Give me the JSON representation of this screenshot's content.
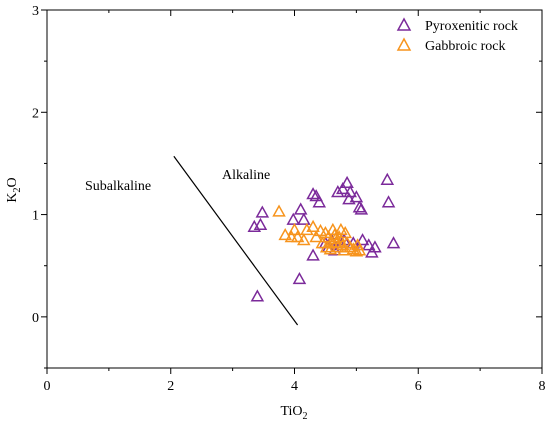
{
  "chart_data": {
    "type": "scatter",
    "title": "",
    "xlabel": "TiO",
    "xlabel_sub": "2",
    "ylabel": "K",
    "ylabel_sub": "2",
    "ylabel_tail": "O",
    "xlim": [
      0,
      8
    ],
    "ylim": [
      -0.5,
      3
    ],
    "xticks": [
      "0",
      "2",
      "4",
      "6",
      "8"
    ],
    "yticks": [
      "0",
      "1",
      "2",
      "3"
    ],
    "grid": false,
    "legend_position": "top-right",
    "series": [
      {
        "name": "Pyroxenitic rock",
        "color": "#7b2a9a",
        "marker": "triangle",
        "points": [
          [
            3.4,
            0.2
          ],
          [
            3.35,
            0.88
          ],
          [
            3.45,
            0.9
          ],
          [
            3.48,
            1.02
          ],
          [
            3.98,
            0.95
          ],
          [
            4.1,
            1.05
          ],
          [
            4.15,
            0.95
          ],
          [
            4.08,
            0.37
          ],
          [
            4.3,
            1.2
          ],
          [
            4.35,
            1.18
          ],
          [
            4.4,
            1.12
          ],
          [
            4.3,
            0.6
          ],
          [
            4.6,
            0.75
          ],
          [
            4.7,
            1.22
          ],
          [
            4.78,
            1.25
          ],
          [
            4.85,
            1.31
          ],
          [
            4.9,
            1.22
          ],
          [
            4.88,
            1.15
          ],
          [
            5.0,
            1.17
          ],
          [
            5.05,
            1.07
          ],
          [
            5.08,
            1.05
          ],
          [
            4.5,
            0.72
          ],
          [
            4.55,
            0.68
          ],
          [
            4.75,
            0.7
          ],
          [
            4.8,
            0.75
          ],
          [
            5.1,
            0.75
          ],
          [
            5.2,
            0.7
          ],
          [
            5.3,
            0.68
          ],
          [
            5.25,
            0.63
          ],
          [
            5.5,
            1.34
          ],
          [
            5.52,
            1.12
          ],
          [
            5.6,
            0.72
          ],
          [
            4.65,
            0.65
          ],
          [
            4.95,
            0.72
          ]
        ]
      },
      {
        "name": "Gabbroic rock",
        "color": "#f7941d",
        "marker": "triangle",
        "points": [
          [
            3.75,
            1.03
          ],
          [
            3.85,
            0.8
          ],
          [
            3.95,
            0.78
          ],
          [
            4.0,
            0.85
          ],
          [
            4.05,
            0.78
          ],
          [
            4.15,
            0.75
          ],
          [
            4.2,
            0.85
          ],
          [
            4.3,
            0.88
          ],
          [
            4.35,
            0.78
          ],
          [
            4.45,
            0.72
          ],
          [
            4.5,
            0.82
          ],
          [
            4.55,
            0.78
          ],
          [
            4.6,
            0.73
          ],
          [
            4.62,
            0.85
          ],
          [
            4.65,
            0.8
          ],
          [
            4.68,
            0.72
          ],
          [
            4.7,
            0.68
          ],
          [
            4.72,
            0.78
          ],
          [
            4.75,
            0.85
          ],
          [
            4.78,
            0.7
          ],
          [
            4.8,
            0.65
          ],
          [
            4.85,
            0.72
          ],
          [
            4.9,
            0.68
          ],
          [
            4.95,
            0.66
          ],
          [
            5.0,
            0.64
          ],
          [
            5.02,
            0.7
          ],
          [
            5.05,
            0.65
          ],
          [
            4.58,
            0.66
          ],
          [
            4.52,
            0.68
          ],
          [
            4.66,
            0.76
          ],
          [
            4.42,
            0.84
          ],
          [
            4.82,
            0.82
          ]
        ]
      }
    ],
    "boundary_line": {
      "x": [
        2.05,
        4.05
      ],
      "y": [
        1.57,
        -0.08
      ],
      "labels": [
        "Subalkaline",
        "Alkaline"
      ]
    }
  }
}
